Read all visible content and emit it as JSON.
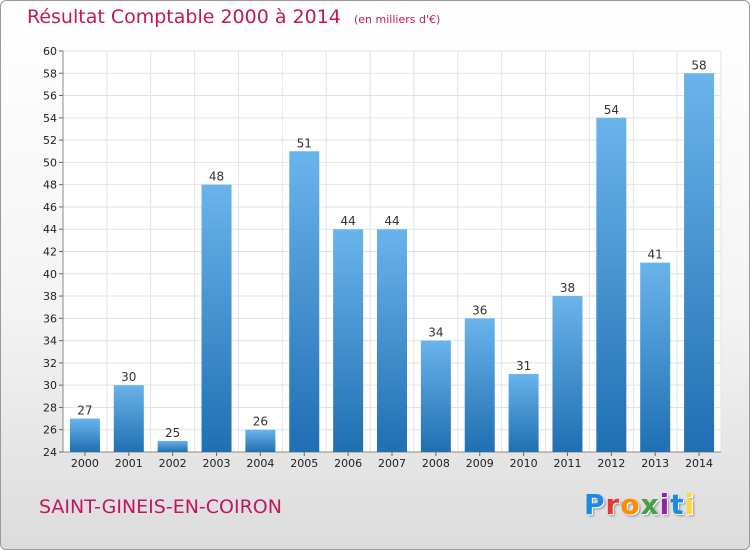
{
  "header": {
    "title": "Résultat Comptable 2000 à 2014",
    "subtitle": "(en milliers d'€)"
  },
  "footer": {
    "commune": "SAINT-GINEIS-EN-COIRON",
    "logo_text": "Proxiti",
    "logo_colors": [
      "#1e88e5",
      "#e53935",
      "#fb8c00",
      "#43a047",
      "#8e24aa",
      "#1e88e5",
      "#fdd835"
    ]
  },
  "colors": {
    "bar_light": "#6ab4ec",
    "bar_dark": "#1f6fb2",
    "text_accent": "#c2185b"
  },
  "chart_data": {
    "type": "bar",
    "categories": [
      "2000",
      "2001",
      "2002",
      "2003",
      "2004",
      "2005",
      "2006",
      "2007",
      "2008",
      "2009",
      "2010",
      "2011",
      "2012",
      "2013",
      "2014"
    ],
    "values": [
      27,
      30,
      25,
      48,
      26,
      51,
      44,
      44,
      34,
      36,
      31,
      38,
      54,
      41,
      58
    ],
    "data_labels": [
      "27",
      "30",
      "25",
      "48",
      "26",
      "51",
      "44",
      "44",
      "34",
      "36",
      "31",
      "38",
      "54",
      "41",
      "58"
    ],
    "y_ticks": [
      "24",
      "26",
      "28",
      "30",
      "32",
      "34",
      "36",
      "38",
      "40",
      "42",
      "44",
      "46",
      "48",
      "50",
      "52",
      "54",
      "56",
      "58",
      "60"
    ],
    "ylim": [
      24,
      60
    ],
    "grid": true
  }
}
